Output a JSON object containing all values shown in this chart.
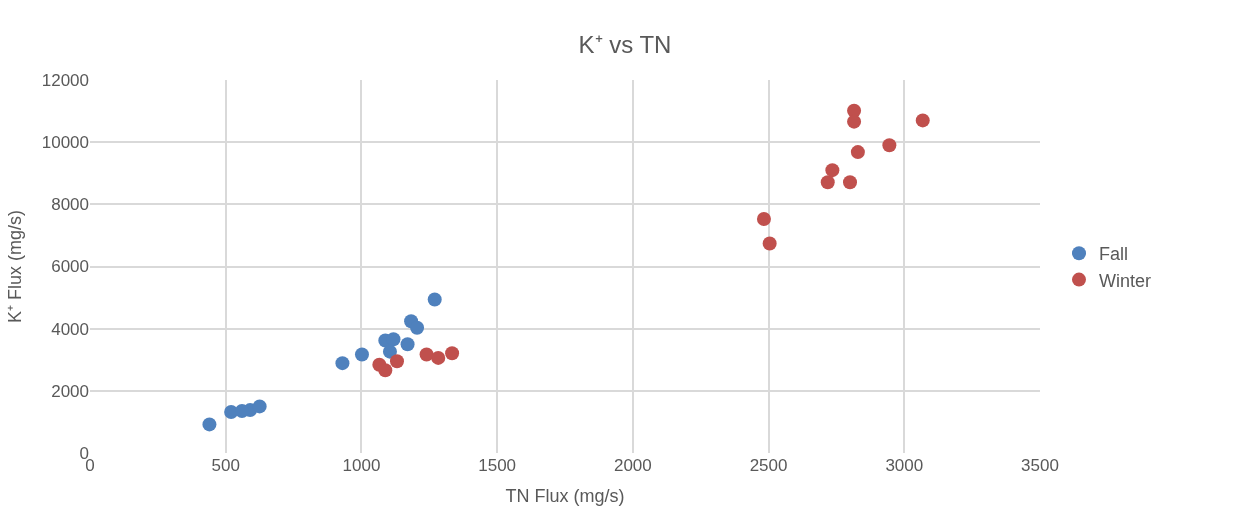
{
  "chart_data": {
    "type": "scatter",
    "title": "K⁺ vs TN",
    "xlabel": "TN Flux (mg/s)",
    "ylabel": "K⁺ Flux (mg/s)",
    "xlim": [
      0,
      3500
    ],
    "xticks": [
      0,
      500,
      1000,
      1500,
      2000,
      2500,
      3000,
      3500
    ],
    "ylim": [
      0,
      12000
    ],
    "yticks": [
      0,
      2000,
      4000,
      6000,
      8000,
      10000,
      12000
    ],
    "grid": true,
    "legend": "right",
    "marker": "circle",
    "series": [
      {
        "name": "Fall",
        "color": "#4f81bd",
        "x": [
          440,
          520,
          560,
          590,
          625,
          560,
          930,
          1002,
          1088,
          1118,
          1170,
          1105,
          1183,
          1205,
          1270
        ],
        "values": [
          920,
          1320,
          null,
          1380,
          1500,
          1350,
          2890,
          3170,
          3620,
          3660,
          3500,
          3260,
          4240,
          4030,
          4940
        ]
      },
      {
        "name": "Winter",
        "color": "#c0504d",
        "x": [
          1066,
          1088,
          1131,
          1240,
          1283,
          1334,
          2468,
          2483,
          2504,
          2735,
          2718,
          2800,
          2829,
          2945,
          2815,
          2815,
          3068
        ],
        "values": [
          2840,
          2660,
          2950,
          3170,
          3060,
          3210,
          null,
          7530,
          6740,
          9100,
          8710,
          8710,
          9680,
          9900,
          11010,
          10660,
          10700
        ]
      }
    ]
  }
}
